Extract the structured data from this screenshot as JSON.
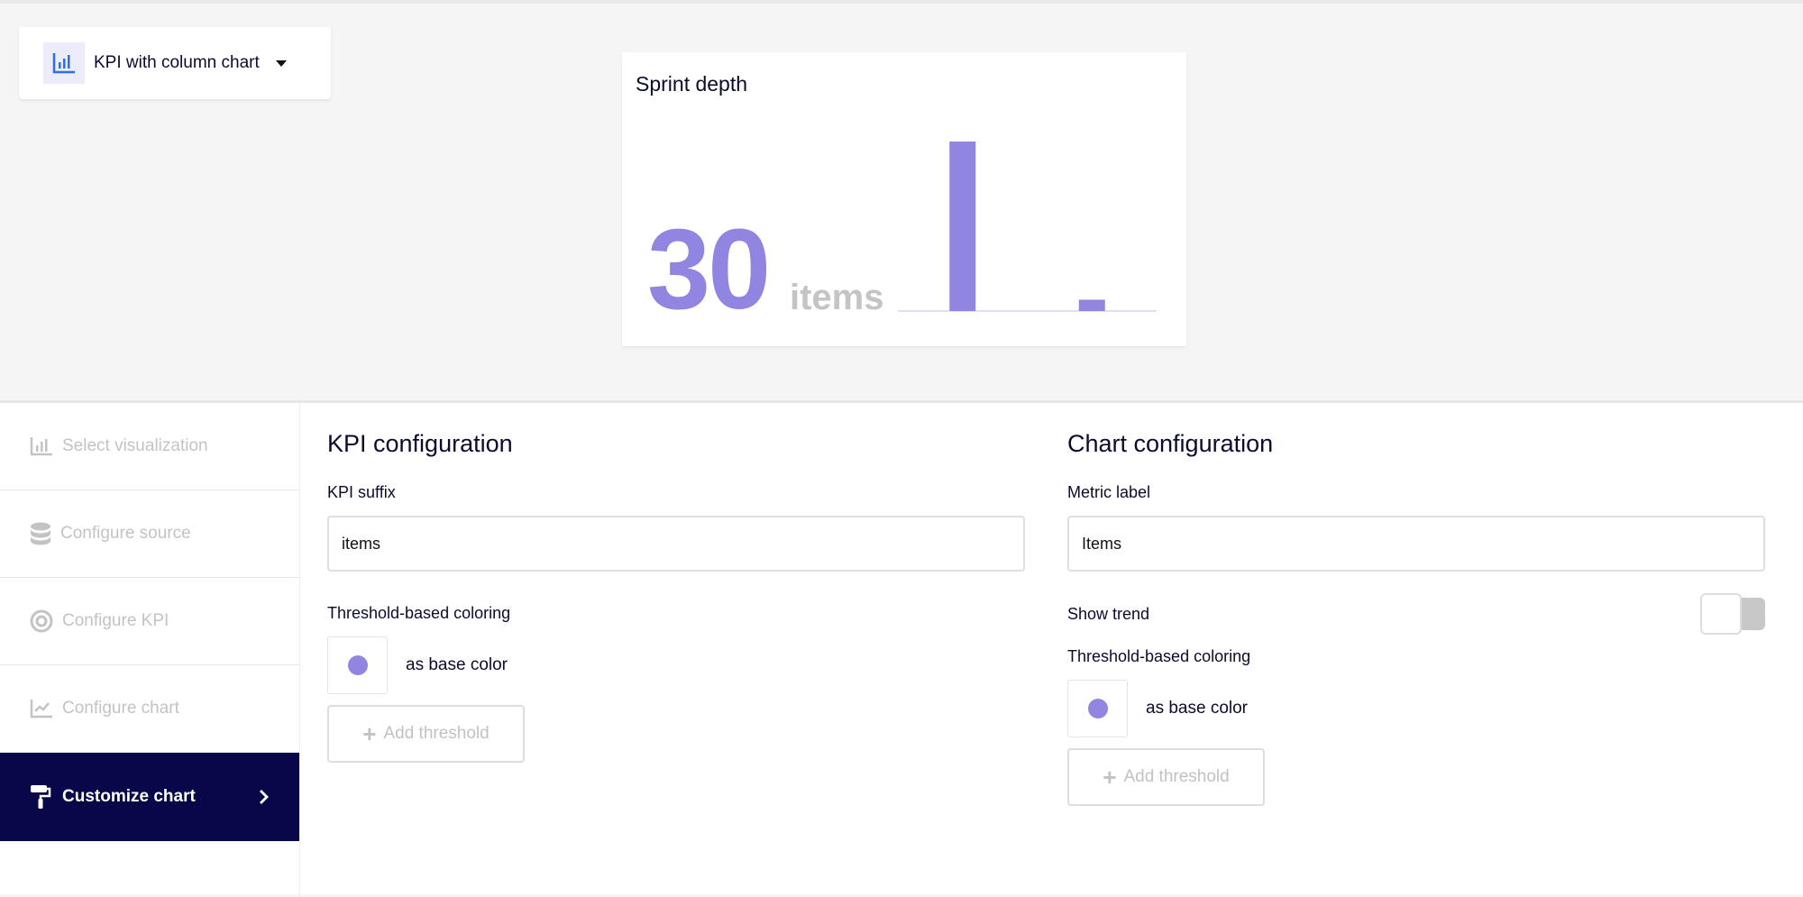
{
  "visualization_selector": {
    "label": "KPI with column chart",
    "icon": "column-chart-icon"
  },
  "preview": {
    "title": "Sprint depth",
    "kpi_value": "30",
    "kpi_suffix": "items"
  },
  "chart_data": {
    "type": "bar",
    "categories": [
      "",
      ""
    ],
    "values": [
      30,
      2
    ],
    "color": "#9185e2",
    "grid": false,
    "title": "",
    "xlabel": "",
    "ylabel": ""
  },
  "sidebar": {
    "items": [
      {
        "label": "Select visualization",
        "icon": "bar-chart-icon",
        "active": false
      },
      {
        "label": "Configure source",
        "icon": "database-icon",
        "active": false
      },
      {
        "label": "Configure KPI",
        "icon": "target-icon",
        "active": false
      },
      {
        "label": "Configure chart",
        "icon": "line-chart-icon",
        "active": false
      },
      {
        "label": "Customize chart",
        "icon": "paint-roller-icon",
        "active": true
      }
    ]
  },
  "kpi_config": {
    "heading": "KPI configuration",
    "suffix_label": "KPI suffix",
    "suffix_value": "items",
    "threshold_label": "Threshold-based coloring",
    "base_color_label": "as base color",
    "add_threshold": "Add threshold"
  },
  "chart_config": {
    "heading": "Chart configuration",
    "metric_label": "Metric label",
    "metric_value": "Items",
    "show_trend_label": "Show trend",
    "show_trend": false,
    "threshold_label": "Threshold-based coloring",
    "base_color_label": "as base color",
    "add_threshold": "Add threshold"
  },
  "colors": {
    "accent": "#9185e2",
    "nav_active": "#07074a"
  }
}
